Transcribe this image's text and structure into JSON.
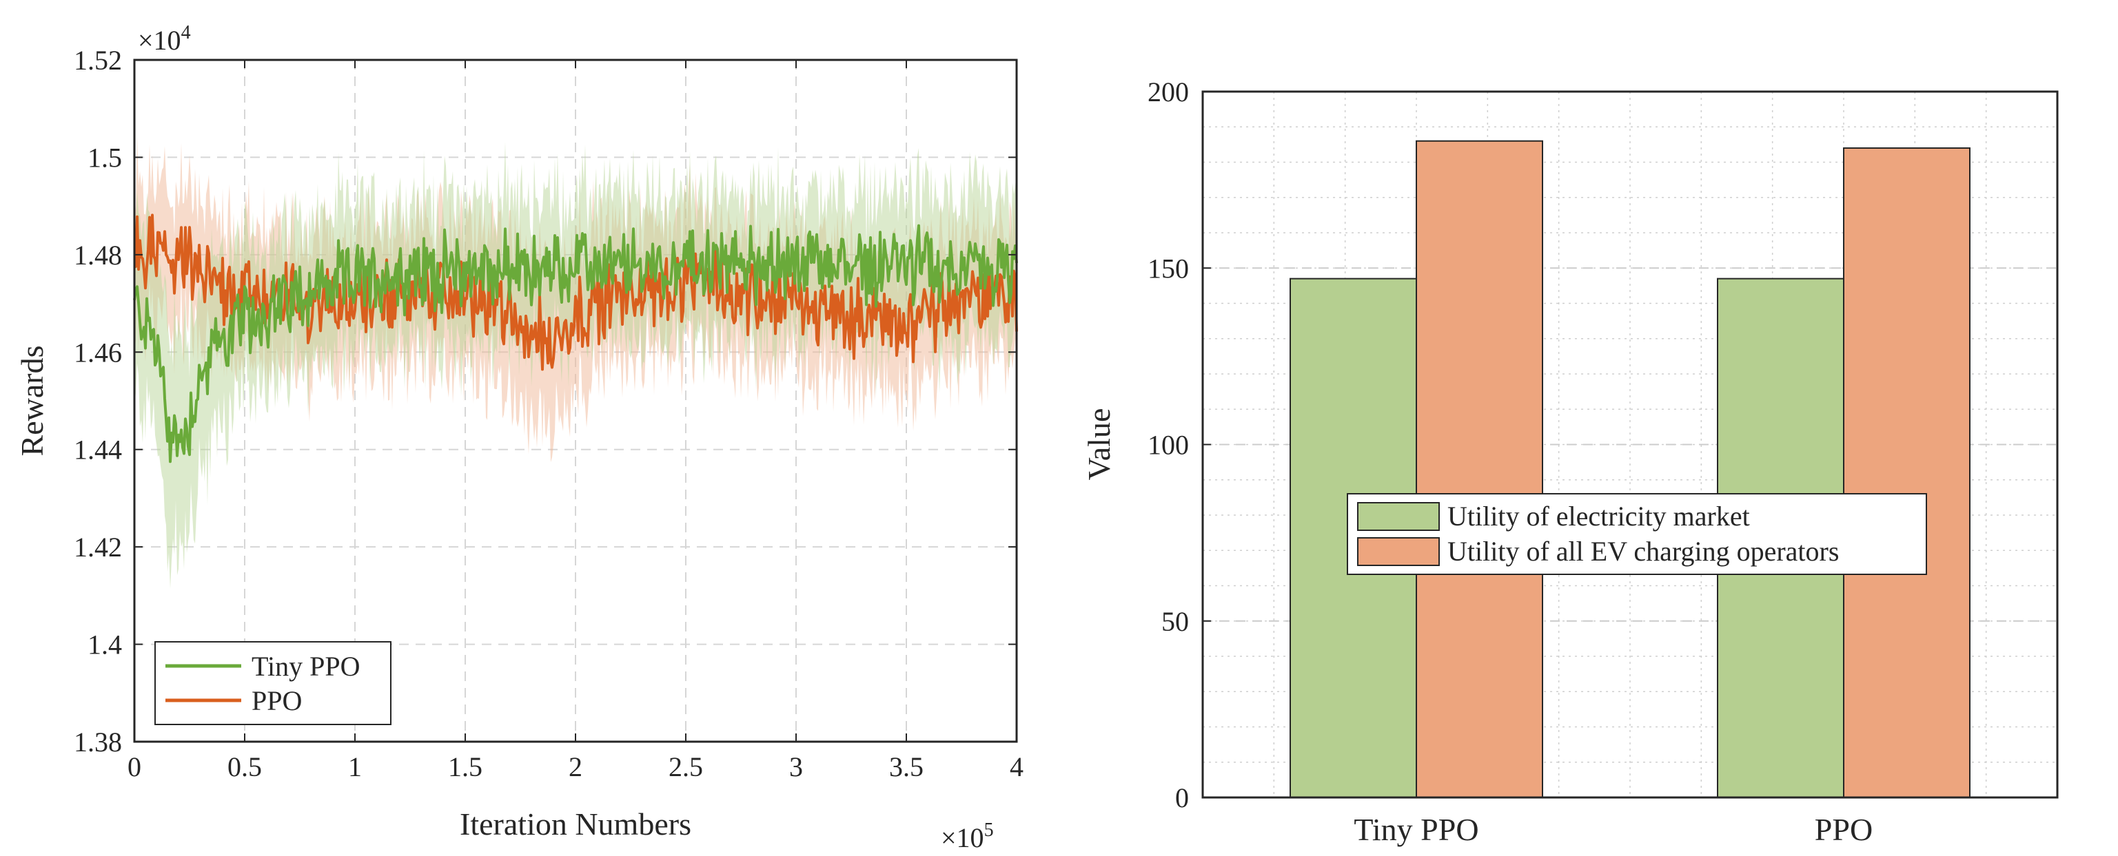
{
  "chart_data": [
    {
      "type": "line",
      "xlabel": "Iteration Numbers",
      "ylabel": "Rewards",
      "x_exponent_label": "×10",
      "x_exponent_power": "5",
      "y_exponent_label": "×10",
      "y_exponent_power": "4",
      "x_scale": 100000,
      "y_scale": 10000,
      "xlim": [
        0,
        4
      ],
      "ylim": [
        1.38,
        1.52
      ],
      "xticks": [
        0,
        0.5,
        1,
        1.5,
        2,
        2.5,
        3,
        3.5,
        4
      ],
      "xtick_labels": [
        "0",
        "0.5",
        "1",
        "1.5",
        "2",
        "2.5",
        "3",
        "3.5",
        "4"
      ],
      "yticks": [
        1.38,
        1.4,
        1.42,
        1.44,
        1.46,
        1.48,
        1.5,
        1.52
      ],
      "ytick_labels": [
        "1.38",
        "1.4",
        "1.42",
        "1.44",
        "1.46",
        "1.48",
        "1.5",
        "1.52"
      ],
      "grid": true,
      "legend_position": "bottom-left",
      "series": [
        {
          "name": "Tiny PPO",
          "color": "#6aaa3a",
          "band_color": "#b9d69a",
          "x": [
            0,
            0.1,
            0.15,
            0.2,
            0.25,
            0.3,
            0.4,
            0.5,
            0.6,
            0.7,
            0.8,
            1.0,
            1.2,
            1.5,
            2.0,
            2.5,
            3.0,
            3.5,
            4.0
          ],
          "values": [
            1.47,
            1.462,
            1.445,
            1.441,
            1.446,
            1.455,
            1.463,
            1.466,
            1.468,
            1.471,
            1.473,
            1.475,
            1.476,
            1.477,
            1.477,
            1.478,
            1.478,
            1.478,
            1.476
          ],
          "band_halfwidth": [
            0.02,
            0.024,
            0.026,
            0.026,
            0.024,
            0.022,
            0.02,
            0.018,
            0.017,
            0.017,
            0.017,
            0.017,
            0.017,
            0.017,
            0.017,
            0.017,
            0.017,
            0.017,
            0.017
          ]
        },
        {
          "name": "PPO",
          "color": "#d95f1e",
          "band_color": "#f0b898",
          "x": [
            0,
            0.1,
            0.2,
            0.3,
            0.5,
            0.8,
            1.0,
            1.3,
            1.5,
            1.7,
            1.8,
            1.9,
            2.0,
            2.2,
            2.5,
            2.8,
            3.0,
            3.3,
            3.5,
            3.8,
            4.0
          ],
          "values": [
            1.481,
            1.48,
            1.479,
            1.476,
            1.472,
            1.47,
            1.471,
            1.472,
            1.472,
            1.468,
            1.464,
            1.462,
            1.468,
            1.472,
            1.474,
            1.472,
            1.47,
            1.467,
            1.466,
            1.471,
            1.472
          ],
          "band_halfwidth": [
            0.016,
            0.016,
            0.016,
            0.016,
            0.016,
            0.016,
            0.016,
            0.016,
            0.017,
            0.018,
            0.02,
            0.02,
            0.018,
            0.016,
            0.016,
            0.016,
            0.016,
            0.016,
            0.016,
            0.016,
            0.016
          ]
        }
      ]
    },
    {
      "type": "bar",
      "title": "",
      "xlabel": "",
      "ylabel": "Value",
      "categories": [
        "Tiny PPO",
        "PPO"
      ],
      "ylim": [
        0,
        200
      ],
      "yticks": [
        0,
        50,
        100,
        150,
        200
      ],
      "ytick_labels": [
        "0",
        "50",
        "100",
        "150",
        "200"
      ],
      "grid": true,
      "legend_position": "center-left",
      "series": [
        {
          "name": "Utility of electricity market",
          "color": "#b5cf90",
          "values": [
            147,
            147
          ]
        },
        {
          "name": "Utility of all EV charging operators",
          "color": "#eda57e",
          "values": [
            186,
            184
          ]
        }
      ]
    }
  ]
}
